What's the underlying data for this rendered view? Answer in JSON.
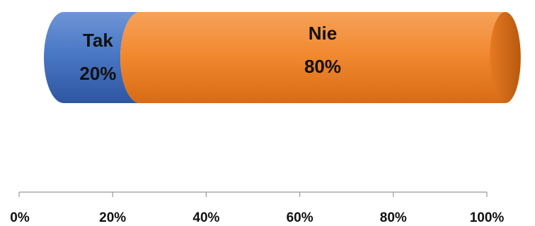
{
  "chart_data": {
    "type": "bar",
    "orientation": "horizontal",
    "stacked": true,
    "style": "cylinder",
    "categories": [
      ""
    ],
    "series": [
      {
        "name": "Tak",
        "values": [
          20
        ],
        "label": "20%"
      },
      {
        "name": "Nie",
        "values": [
          80
        ],
        "label": "80%"
      }
    ],
    "xlim": [
      0,
      100
    ],
    "x_ticks": [
      "0%",
      "20%",
      "40%",
      "60%",
      "80%",
      "100%"
    ],
    "grid": false,
    "legend": "none",
    "colors": {
      "tak": "#4472C4",
      "nie": "#F08028",
      "axis": "#999999"
    }
  }
}
